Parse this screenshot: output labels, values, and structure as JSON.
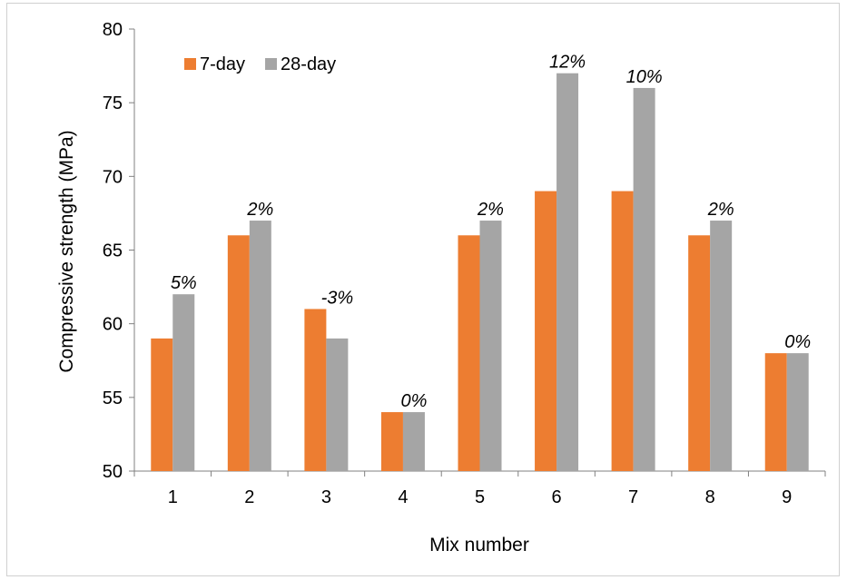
{
  "chart_data": {
    "type": "bar",
    "xlabel": "Mix number",
    "ylabel": "Compressive strength (MPa)",
    "ylim": [
      50,
      80
    ],
    "yticks": [
      50,
      55,
      60,
      65,
      70,
      75,
      80
    ],
    "grid": false,
    "legend_position": "top-left",
    "categories": [
      "1",
      "2",
      "3",
      "4",
      "5",
      "6",
      "7",
      "8",
      "9"
    ],
    "series": [
      {
        "name": "7-day",
        "color": "#ED7D31",
        "values": [
          59,
          66,
          61,
          54,
          66,
          69,
          69,
          66,
          58
        ]
      },
      {
        "name": "28-day",
        "color": "#A5A5A5",
        "values": [
          62,
          67,
          59,
          54,
          67,
          77,
          76,
          67,
          58
        ]
      }
    ],
    "annotations": [
      "5%",
      "2%",
      "-3%",
      "0%",
      "2%",
      "12%",
      "10%",
      "2%",
      "0%"
    ]
  }
}
